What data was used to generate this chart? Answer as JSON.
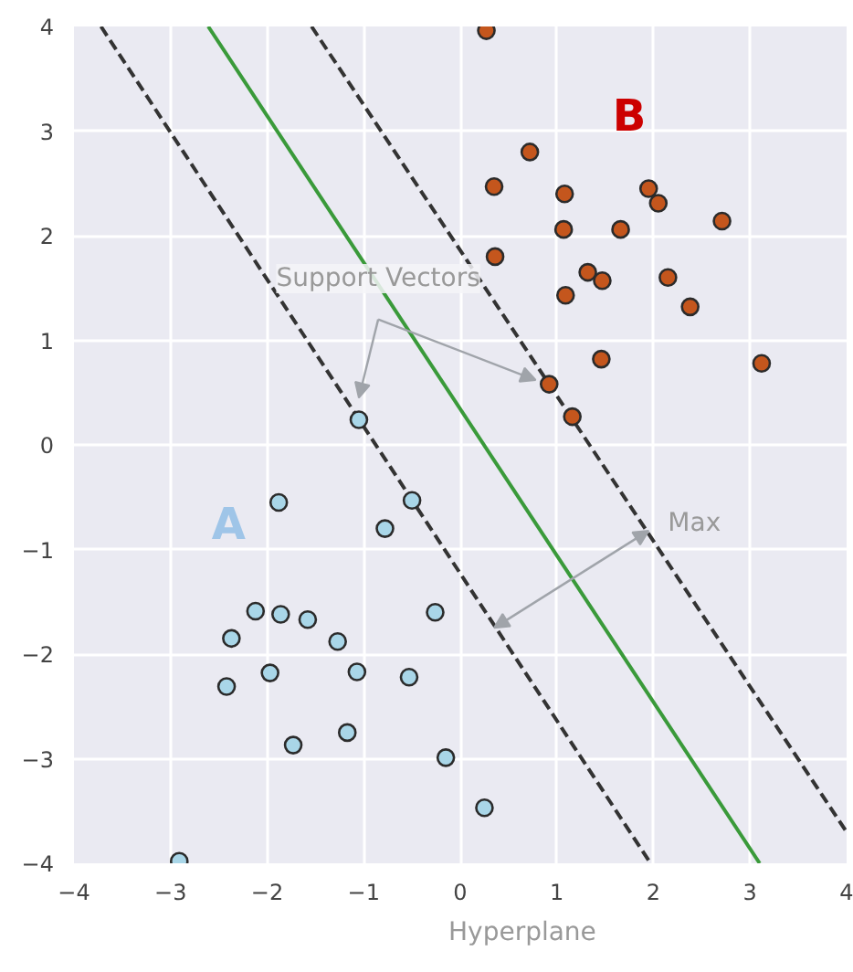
{
  "chart_data": {
    "type": "scatter",
    "xlim": [
      -4,
      4
    ],
    "ylim": [
      -4,
      4
    ],
    "xticks": [
      {
        "value": -4,
        "label": "−4"
      },
      {
        "value": -3,
        "label": "−3"
      },
      {
        "value": -2,
        "label": "−2"
      },
      {
        "value": -1,
        "label": "−1"
      },
      0,
      1,
      2,
      3,
      4
    ],
    "yticks": [
      {
        "value": -4,
        "label": "−4"
      },
      {
        "value": -3,
        "label": "−3"
      },
      {
        "value": -2,
        "label": "−2"
      },
      {
        "value": -1,
        "label": "−1"
      },
      0,
      1,
      2,
      3,
      4
    ],
    "grid": true,
    "marker": "circle",
    "series": [
      {
        "color": "#a9d6e8",
        "x": [
          -1.05,
          -1.88,
          -0.5,
          -0.78,
          -2.12,
          -1.86,
          -1.58,
          -0.26,
          -2.37,
          -1.27,
          -1.07,
          -1.97,
          -0.53,
          -2.42,
          -1.17,
          -1.73,
          -0.15,
          0.25,
          -2.91
        ],
        "values": [
          0.24,
          -0.55,
          -0.53,
          -0.8,
          -1.59,
          -1.62,
          -1.67,
          -1.6,
          -1.85,
          -1.88,
          -2.17,
          -2.18,
          -2.22,
          -2.31,
          -2.75,
          -2.87,
          -2.99,
          -3.47,
          -3.98
        ]
      },
      {
        "color": "#c4561d",
        "x": [
          0.27,
          0.72,
          0.35,
          1.08,
          1.95,
          2.05,
          2.71,
          1.07,
          1.66,
          0.36,
          1.32,
          1.47,
          2.15,
          1.09,
          2.38,
          1.46,
          3.12,
          0.92,
          1.16
        ],
        "values": [
          3.96,
          2.8,
          2.47,
          2.4,
          2.45,
          2.31,
          2.14,
          2.06,
          2.06,
          1.8,
          1.65,
          1.57,
          1.6,
          1.43,
          1.32,
          0.82,
          0.78,
          0.58,
          0.27
        ]
      },
      {
        "type": "line",
        "color": "#3a9a3a",
        "line_style": "solid",
        "marker": "none",
        "x": [
          -2.61,
          3.1
        ],
        "values": [
          4,
          -4
        ]
      },
      {
        "type": "line",
        "color": "#333333",
        "line_style": "dashed",
        "marker": "none",
        "x": [
          -3.72,
          1.97
        ],
        "values": [
          4,
          -4
        ]
      },
      {
        "type": "line",
        "color": "#333333",
        "line_style": "dashed",
        "marker": "none",
        "x": [
          -1.54,
          4
        ],
        "values": [
          4,
          -3.7
        ]
      }
    ],
    "annotations": [
      "B",
      "A",
      {
        "text": "Support Vectors",
        "x": 0.92,
        "y": 0.58
      },
      "Max",
      "Hyperplane"
    ]
  }
}
